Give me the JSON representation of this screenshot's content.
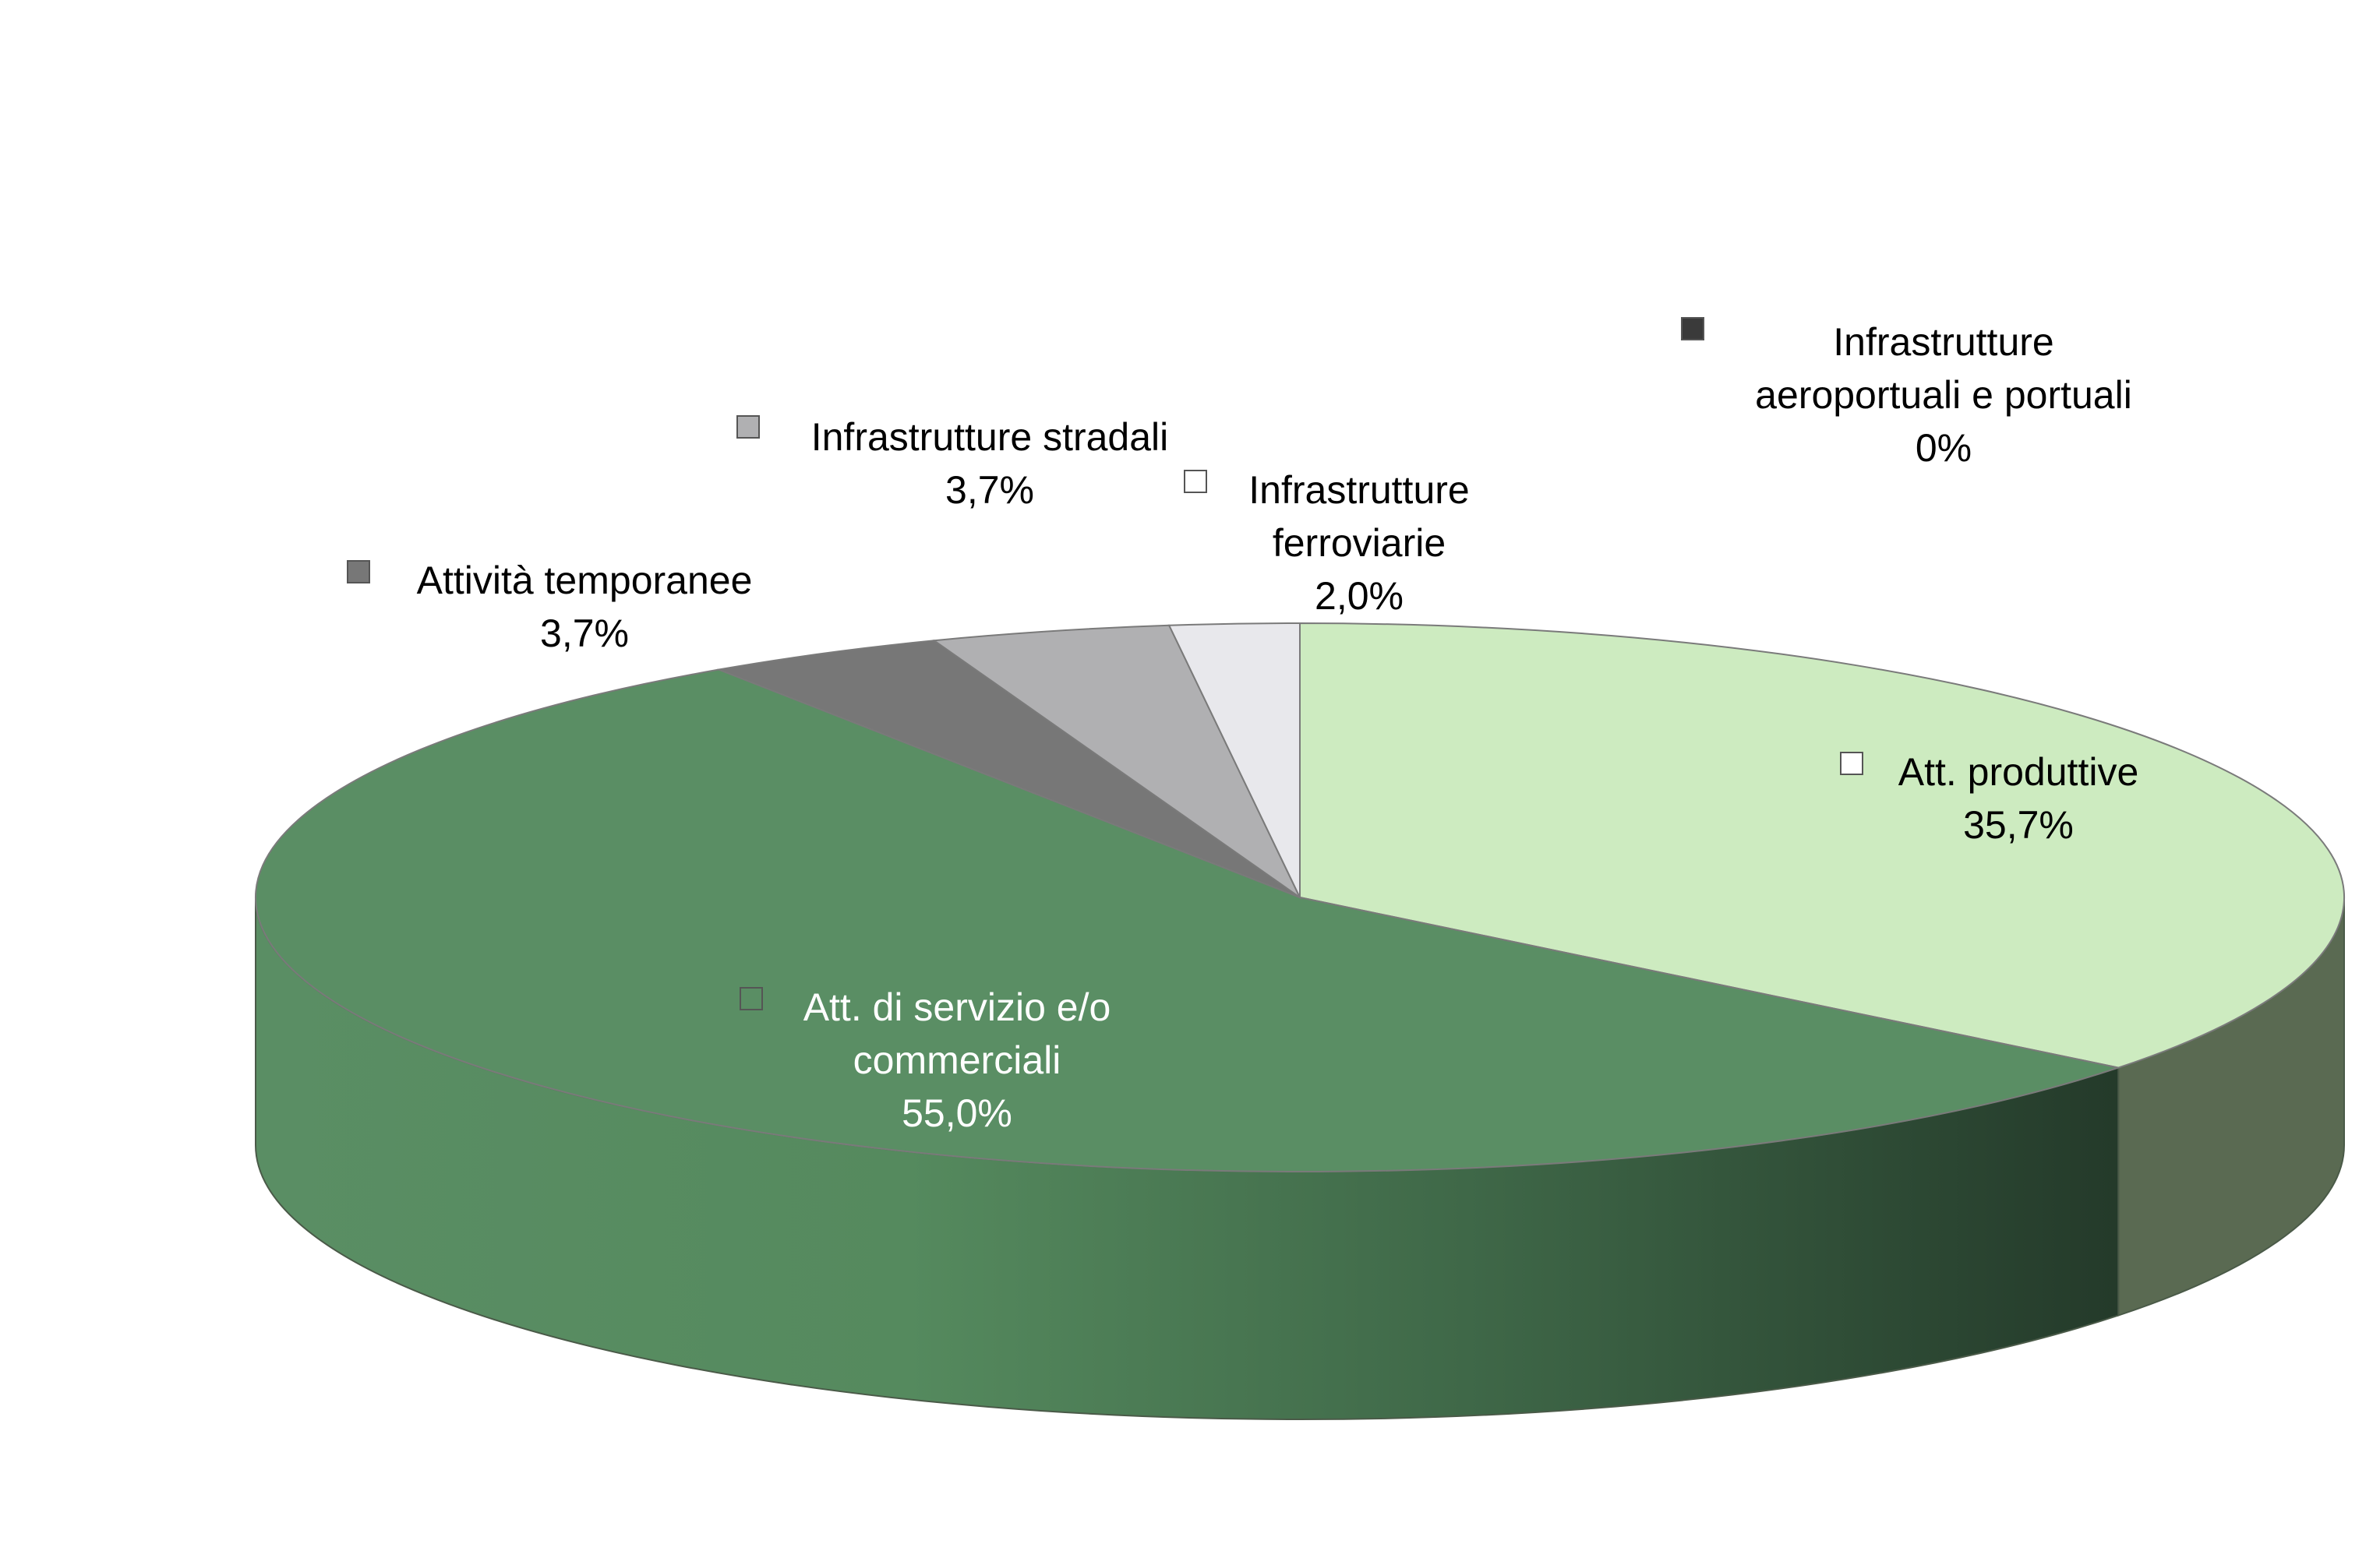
{
  "chart_data": {
    "type": "pie",
    "style": "3d",
    "title": "",
    "slices": [
      {
        "name": "Att. produttive",
        "value": 35.7,
        "value_label": "35,7%",
        "label_lines": [
          "Att. produttive",
          "35,7%"
        ],
        "color": "#cdebc0",
        "side_color": "#5a6a52",
        "marker_color": "#ffffff",
        "text_color": "#000000"
      },
      {
        "name": "Att. di servizio e/o commerciali",
        "value": 55.0,
        "value_label": "55,0%",
        "label_lines": [
          "Att. di servizio e/o",
          "commerciali",
          "55,0%"
        ],
        "color": "#5a8e64",
        "side_color": "#4a7c55",
        "marker_color": "#5a8e64",
        "text_color": "#ffffff"
      },
      {
        "name": "Attività temporanee",
        "value": 3.7,
        "value_label": "3,7%",
        "label_lines": [
          "Attività temporanee",
          "3,7%"
        ],
        "color": "#777777",
        "side_color": "#555555",
        "marker_color": "#777777",
        "text_color": "#000000"
      },
      {
        "name": "Infrastrutture stradali",
        "value": 3.7,
        "value_label": "3,7%",
        "label_lines": [
          "Infrastrutture stradali",
          "3,7%"
        ],
        "color": "#b0b0b2",
        "side_color": "#8a8a8c",
        "marker_color": "#b0b0b2",
        "text_color": "#000000"
      },
      {
        "name": "Infrastrutture ferroviarie",
        "value": 2.0,
        "value_label": "2,0%",
        "label_lines": [
          "Infrastrutture",
          "ferroviarie",
          "2,0%"
        ],
        "color": "#e8e8ec",
        "side_color": "#c8c8cc",
        "marker_color": "#ffffff",
        "text_color": "#000000"
      },
      {
        "name": "Infrastrutture aeroportuali e portuali",
        "value": 0,
        "value_label": "0%",
        "label_lines": [
          "Infrastrutture",
          "aeroportuali e portuali",
          "0%"
        ],
        "color": "#3a3a3a",
        "side_color": "#2a2a2a",
        "marker_color": "#3a3a3a",
        "text_color": "#000000"
      }
    ]
  }
}
